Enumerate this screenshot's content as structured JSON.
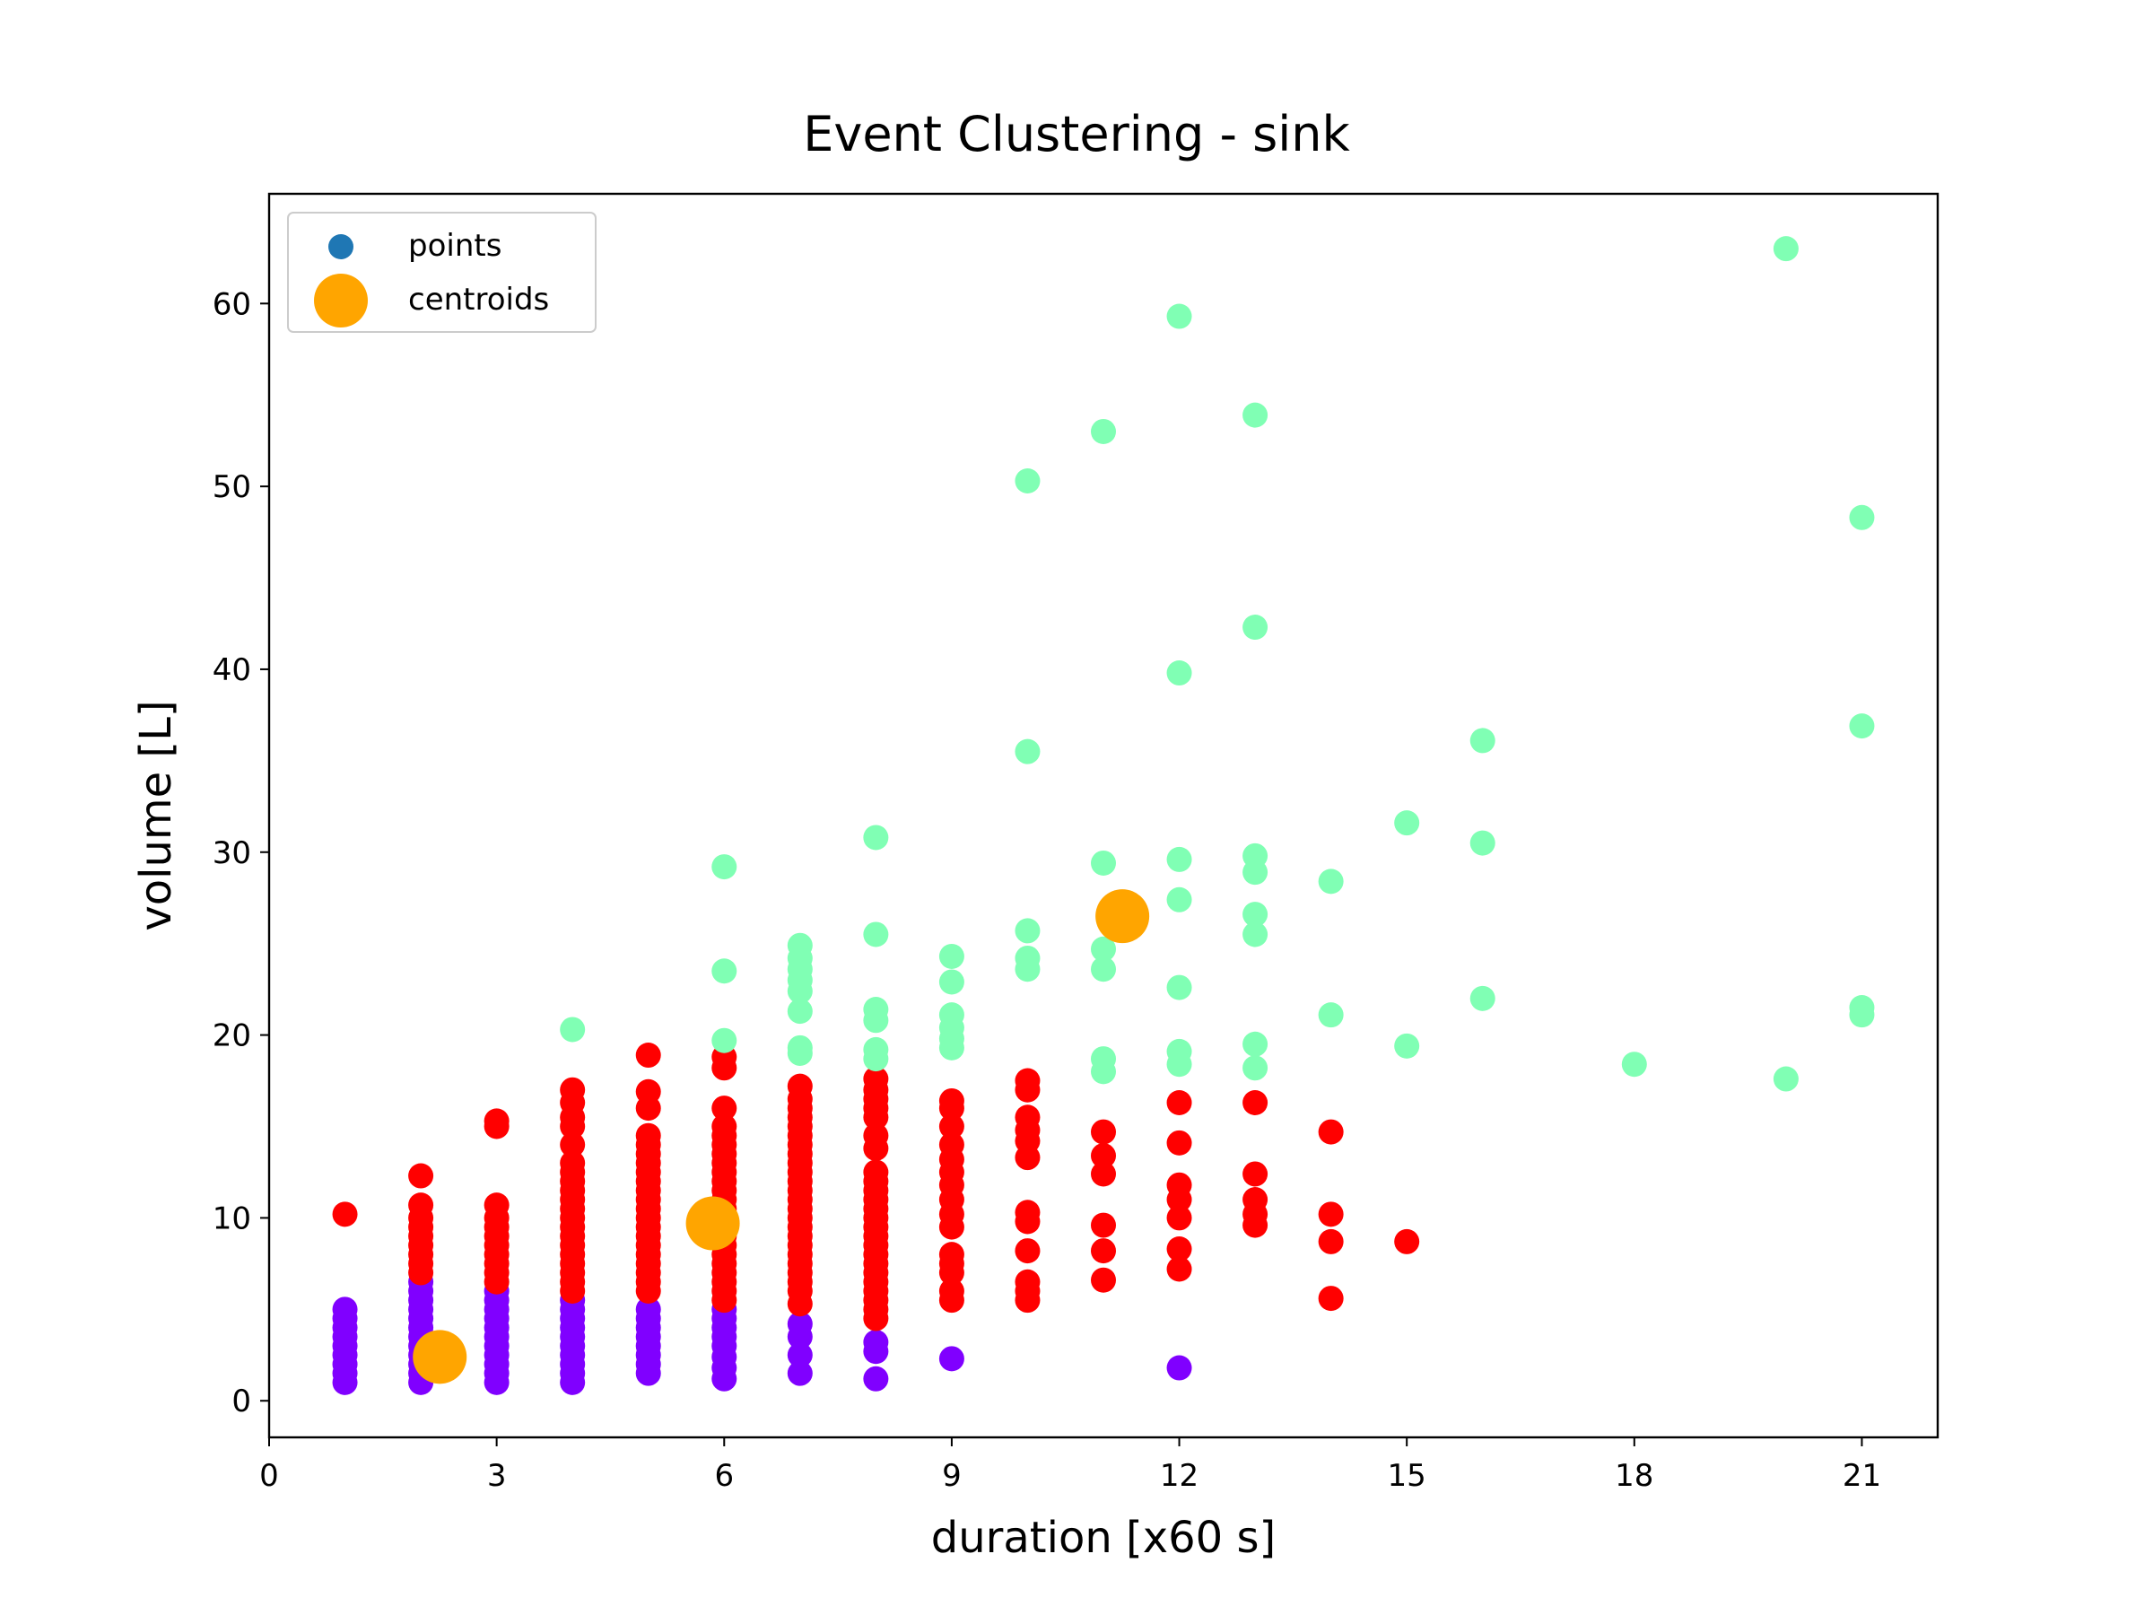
{
  "chart_data": {
    "type": "scatter",
    "title": "Event Clustering - sink",
    "xlabel": "duration [x60 s]",
    "ylabel": "volume [L]",
    "xlim": [
      0,
      22
    ],
    "ylim": [
      -2,
      66
    ],
    "xticks": [
      0,
      3,
      6,
      9,
      12,
      15,
      18,
      21
    ],
    "yticks": [
      0,
      10,
      20,
      30,
      40,
      50,
      60
    ],
    "grid": false,
    "legend_position": "top-left",
    "legend": [
      {
        "label": "points",
        "color": "#1f77b4"
      },
      {
        "label": "centroids",
        "color": "#ffa500"
      }
    ],
    "series": [
      {
        "cluster": 0,
        "color": "#8000ff",
        "points": [
          [
            1,
            1
          ],
          [
            1,
            1.5
          ],
          [
            1,
            2
          ],
          [
            1,
            2.5
          ],
          [
            1,
            3
          ],
          [
            1,
            3.5
          ],
          [
            1,
            4
          ],
          [
            1,
            4.5
          ],
          [
            1,
            5
          ],
          [
            2,
            1
          ],
          [
            2,
            1.5
          ],
          [
            2,
            2
          ],
          [
            2,
            2.5
          ],
          [
            2,
            3
          ],
          [
            2,
            3.5
          ],
          [
            2,
            4
          ],
          [
            2,
            4.5
          ],
          [
            2,
            5
          ],
          [
            2,
            5.5
          ],
          [
            2,
            6
          ],
          [
            2,
            6.5
          ],
          [
            3,
            1
          ],
          [
            3,
            1.5
          ],
          [
            3,
            2
          ],
          [
            3,
            2.5
          ],
          [
            3,
            3
          ],
          [
            3,
            3.5
          ],
          [
            3,
            4
          ],
          [
            3,
            4.5
          ],
          [
            3,
            5
          ],
          [
            3,
            5.5
          ],
          [
            3,
            6
          ],
          [
            4,
            1
          ],
          [
            4,
            1.5
          ],
          [
            4,
            2
          ],
          [
            4,
            2.5
          ],
          [
            4,
            3
          ],
          [
            4,
            3.5
          ],
          [
            4,
            4
          ],
          [
            4,
            4.5
          ],
          [
            4,
            5
          ],
          [
            4,
            5.5
          ],
          [
            5,
            1.5
          ],
          [
            5,
            2
          ],
          [
            5,
            2.5
          ],
          [
            5,
            3
          ],
          [
            5,
            3.5
          ],
          [
            5,
            4
          ],
          [
            5,
            4.5
          ],
          [
            5,
            5
          ],
          [
            6,
            1.2
          ],
          [
            6,
            1.8
          ],
          [
            6,
            2.4
          ],
          [
            6,
            3
          ],
          [
            6,
            3.5
          ],
          [
            6,
            4
          ],
          [
            6,
            4.5
          ],
          [
            6,
            5
          ],
          [
            7,
            1.5
          ],
          [
            7,
            2.5
          ],
          [
            7,
            3.5
          ],
          [
            7,
            4.2
          ],
          [
            8,
            1.2
          ],
          [
            8,
            2.7
          ],
          [
            8,
            3.2
          ],
          [
            9,
            2.3
          ],
          [
            12,
            1.8
          ]
        ]
      },
      {
        "cluster": 1,
        "color": "#ff0000",
        "points": [
          [
            1,
            10.2
          ],
          [
            2,
            7
          ],
          [
            2,
            7.5
          ],
          [
            2,
            8
          ],
          [
            2,
            8.5
          ],
          [
            2,
            9
          ],
          [
            2,
            9.5
          ],
          [
            2,
            10
          ],
          [
            2,
            10.7
          ],
          [
            2,
            12.3
          ],
          [
            3,
            6.5
          ],
          [
            3,
            7
          ],
          [
            3,
            7.5
          ],
          [
            3,
            8
          ],
          [
            3,
            8.5
          ],
          [
            3,
            9
          ],
          [
            3,
            9.5
          ],
          [
            3,
            10
          ],
          [
            3,
            10.7
          ],
          [
            3,
            15
          ],
          [
            3,
            15.3
          ],
          [
            4,
            6
          ],
          [
            4,
            6.5
          ],
          [
            4,
            7
          ],
          [
            4,
            7.5
          ],
          [
            4,
            8
          ],
          [
            4,
            8.5
          ],
          [
            4,
            9
          ],
          [
            4,
            9.5
          ],
          [
            4,
            10
          ],
          [
            4,
            10.5
          ],
          [
            4,
            11
          ],
          [
            4,
            11.5
          ],
          [
            4,
            12
          ],
          [
            4,
            12.5
          ],
          [
            4,
            13
          ],
          [
            4,
            14
          ],
          [
            4,
            15
          ],
          [
            4,
            15.5
          ],
          [
            4,
            16.3
          ],
          [
            4,
            17
          ],
          [
            5,
            6
          ],
          [
            5,
            6.5
          ],
          [
            5,
            7
          ],
          [
            5,
            7.5
          ],
          [
            5,
            8
          ],
          [
            5,
            8.5
          ],
          [
            5,
            9
          ],
          [
            5,
            9.5
          ],
          [
            5,
            10
          ],
          [
            5,
            10.5
          ],
          [
            5,
            11
          ],
          [
            5,
            11.5
          ],
          [
            5,
            12
          ],
          [
            5,
            12.5
          ],
          [
            5,
            13
          ],
          [
            5,
            13.5
          ],
          [
            5,
            14
          ],
          [
            5,
            14.5
          ],
          [
            5,
            16
          ],
          [
            5,
            16.9
          ],
          [
            5,
            18.9
          ],
          [
            6,
            5.5
          ],
          [
            6,
            6
          ],
          [
            6,
            6.5
          ],
          [
            6,
            7
          ],
          [
            6,
            7.5
          ],
          [
            6,
            8
          ],
          [
            6,
            8.5
          ],
          [
            6,
            9
          ],
          [
            6,
            9.5
          ],
          [
            6,
            10
          ],
          [
            6,
            10.5
          ],
          [
            6,
            11
          ],
          [
            6,
            11.5
          ],
          [
            6,
            12
          ],
          [
            6,
            12.5
          ],
          [
            6,
            13
          ],
          [
            6,
            13.5
          ],
          [
            6,
            14
          ],
          [
            6,
            14.5
          ],
          [
            6,
            15
          ],
          [
            6,
            16
          ],
          [
            6,
            18.2
          ],
          [
            6,
            18.8
          ],
          [
            7,
            5.3
          ],
          [
            7,
            6
          ],
          [
            7,
            6.5
          ],
          [
            7,
            7
          ],
          [
            7,
            7.5
          ],
          [
            7,
            8
          ],
          [
            7,
            8.5
          ],
          [
            7,
            9
          ],
          [
            7,
            9.5
          ],
          [
            7,
            10
          ],
          [
            7,
            10.5
          ],
          [
            7,
            11
          ],
          [
            7,
            11.5
          ],
          [
            7,
            12
          ],
          [
            7,
            12.5
          ],
          [
            7,
            13
          ],
          [
            7,
            13.5
          ],
          [
            7,
            14
          ],
          [
            7,
            14.5
          ],
          [
            7,
            15
          ],
          [
            7,
            15.5
          ],
          [
            7,
            16
          ],
          [
            7,
            16.5
          ],
          [
            7,
            17.2
          ],
          [
            8,
            4.5
          ],
          [
            8,
            5
          ],
          [
            8,
            5.5
          ],
          [
            8,
            6
          ],
          [
            8,
            6.5
          ],
          [
            8,
            7
          ],
          [
            8,
            7.5
          ],
          [
            8,
            8
          ],
          [
            8,
            8.5
          ],
          [
            8,
            9
          ],
          [
            8,
            9.5
          ],
          [
            8,
            10
          ],
          [
            8,
            10.5
          ],
          [
            8,
            11
          ],
          [
            8,
            11.5
          ],
          [
            8,
            12
          ],
          [
            8,
            12.5
          ],
          [
            8,
            13.8
          ],
          [
            8,
            14.5
          ],
          [
            8,
            15.5
          ],
          [
            8,
            16
          ],
          [
            8,
            16.5
          ],
          [
            8,
            17
          ],
          [
            8,
            17.6
          ],
          [
            9,
            5.5
          ],
          [
            9,
            6
          ],
          [
            9,
            7
          ],
          [
            9,
            7.5
          ],
          [
            9,
            8
          ],
          [
            9,
            9.5
          ],
          [
            9,
            10.2
          ],
          [
            9,
            11
          ],
          [
            9,
            11.8
          ],
          [
            9,
            12.5
          ],
          [
            9,
            13.2
          ],
          [
            9,
            14
          ],
          [
            9,
            15
          ],
          [
            9,
            16
          ],
          [
            9,
            16.4
          ],
          [
            10,
            5.5
          ],
          [
            10,
            6
          ],
          [
            10,
            6.5
          ],
          [
            10,
            8.2
          ],
          [
            10,
            9.8
          ],
          [
            10,
            10.3
          ],
          [
            10,
            13.3
          ],
          [
            10,
            14.2
          ],
          [
            10,
            14.8
          ],
          [
            10,
            15.5
          ],
          [
            10,
            17
          ],
          [
            10,
            17.5
          ],
          [
            11,
            6.6
          ],
          [
            11,
            8.2
          ],
          [
            11,
            9.6
          ],
          [
            11,
            12.4
          ],
          [
            11,
            13.4
          ],
          [
            11,
            14.7
          ],
          [
            12,
            7.2
          ],
          [
            12,
            8.3
          ],
          [
            12,
            10
          ],
          [
            12,
            11
          ],
          [
            12,
            11.8
          ],
          [
            12,
            14.1
          ],
          [
            12,
            16.3
          ],
          [
            13,
            9.6
          ],
          [
            13,
            10.2
          ],
          [
            13,
            11
          ],
          [
            13,
            12.4
          ],
          [
            13,
            16.3
          ],
          [
            14,
            5.6
          ],
          [
            14,
            8.7
          ],
          [
            14,
            10.2
          ],
          [
            14,
            14.7
          ],
          [
            15,
            8.7
          ]
        ]
      },
      {
        "cluster": 2,
        "color": "#80ffb4",
        "points": [
          [
            4,
            20.3
          ],
          [
            6,
            19.7
          ],
          [
            6,
            23.5
          ],
          [
            6,
            29.2
          ],
          [
            7,
            19
          ],
          [
            7,
            19.3
          ],
          [
            7,
            21.3
          ],
          [
            7,
            22.4
          ],
          [
            7,
            23
          ],
          [
            7,
            23.6
          ],
          [
            7,
            24.2
          ],
          [
            7,
            24.9
          ],
          [
            8,
            18.7
          ],
          [
            8,
            19.2
          ],
          [
            8,
            20.8
          ],
          [
            8,
            21.4
          ],
          [
            8,
            25.5
          ],
          [
            8,
            30.8
          ],
          [
            9,
            19.3
          ],
          [
            9,
            19.8
          ],
          [
            9,
            20.4
          ],
          [
            9,
            21.1
          ],
          [
            9,
            22.9
          ],
          [
            9,
            24.3
          ],
          [
            10,
            23.6
          ],
          [
            10,
            24.2
          ],
          [
            10,
            25.7
          ],
          [
            10,
            35.5
          ],
          [
            10,
            50.3
          ],
          [
            11,
            18
          ],
          [
            11,
            18.7
          ],
          [
            11,
            23.6
          ],
          [
            11,
            24.7
          ],
          [
            11,
            29.4
          ],
          [
            11,
            53
          ],
          [
            12,
            18.4
          ],
          [
            12,
            19.1
          ],
          [
            12,
            22.6
          ],
          [
            12,
            27.4
          ],
          [
            12,
            29.6
          ],
          [
            12,
            39.8
          ],
          [
            12,
            59.3
          ],
          [
            13,
            18.2
          ],
          [
            13,
            19.5
          ],
          [
            13,
            25.5
          ],
          [
            13,
            26.6
          ],
          [
            13,
            28.9
          ],
          [
            13,
            29.8
          ],
          [
            13,
            42.3
          ],
          [
            13,
            53.9
          ],
          [
            14,
            21.1
          ],
          [
            14,
            28.4
          ],
          [
            15,
            19.4
          ],
          [
            15,
            31.6
          ],
          [
            16,
            22
          ],
          [
            16,
            30.5
          ],
          [
            16,
            36.1
          ],
          [
            18,
            18.4
          ],
          [
            20,
            17.6
          ],
          [
            20,
            63
          ],
          [
            21,
            21.1
          ],
          [
            21,
            21.5
          ],
          [
            21,
            36.9
          ],
          [
            21,
            48.3
          ]
        ]
      }
    ],
    "centroids": {
      "color": "#ffa500",
      "points": [
        [
          2.25,
          2.4
        ],
        [
          5.85,
          9.7
        ],
        [
          11.25,
          26.5
        ]
      ]
    }
  }
}
